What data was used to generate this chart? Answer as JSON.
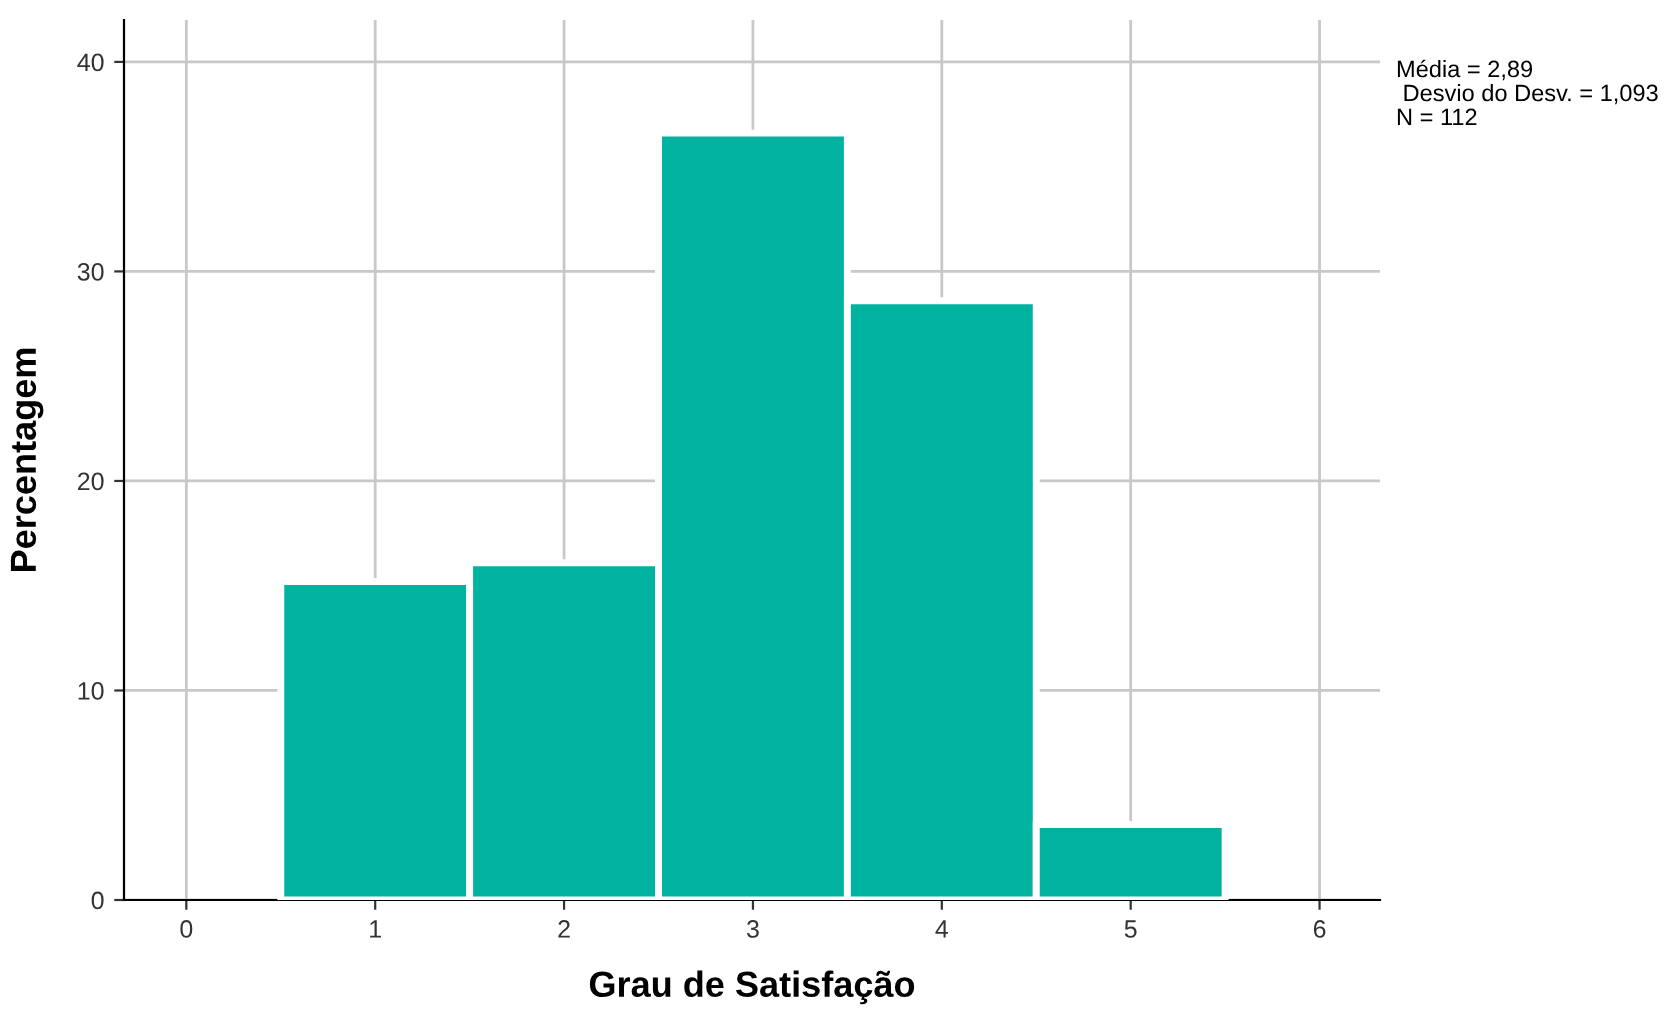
{
  "chart_data": {
    "type": "histogram",
    "xlabel": "Grau de Satisfação",
    "ylabel": "Percentagem",
    "bins": [
      0.5,
      1.5,
      2.5,
      3.5,
      4.5,
      5.5
    ],
    "values": [
      15.2,
      16.1,
      36.6,
      28.6,
      3.6
    ],
    "color": "#00b3a1",
    "xlim": [
      -0.33,
      6.32
    ],
    "xticks": [
      0,
      1,
      2,
      3,
      4,
      5,
      6
    ],
    "ylim": [
      0,
      42
    ],
    "yticks": [
      0,
      10,
      20,
      30,
      40
    ],
    "grid": true,
    "annotations": [
      "Média = 2,89",
      " Desvio do Desv. = 1,093",
      "N = 112"
    ]
  }
}
